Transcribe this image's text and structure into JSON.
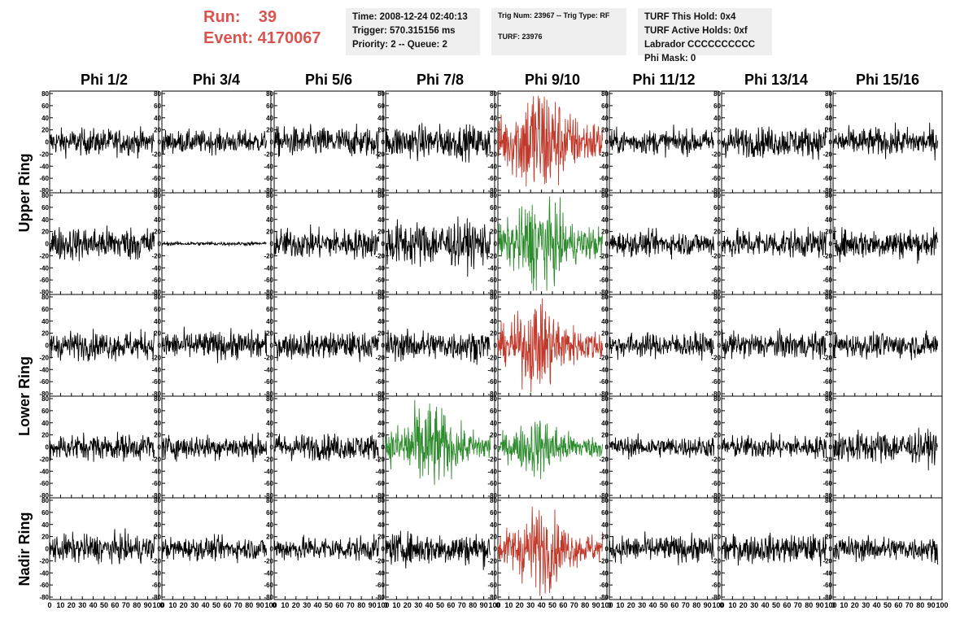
{
  "header": {
    "run_label": "Run:    39",
    "event_label": "Event: 4170067",
    "time_line": "Time: 2008-12-24 02:40:13",
    "trigger_line": "Trigger: 570.315156 ms",
    "priority_line": "Priority: 2 -- Queue: 2",
    "trig_num_line": "Trig Num: 23967 -- Trig Type: RF",
    "turf_line": "TURF: 23976",
    "turf_hold_line": "TURF This Hold: 0x4",
    "turf_active_line": "TURF Active Holds: 0xf",
    "labrador_line": "Labrador CCCCCCCCCC",
    "phi_mask_line": "Phi Mask: 0"
  },
  "chart_data": {
    "type": "line",
    "columns": [
      "Phi 1/2",
      "Phi 3/4",
      "Phi 5/6",
      "Phi 7/8",
      "Phi 9/10",
      "Phi 11/12",
      "Phi 13/14",
      "Phi 15/16"
    ],
    "ring_labels": [
      "Upper Ring",
      "Lower Ring",
      "Nadir Ring"
    ],
    "ylim": [
      -80,
      80
    ],
    "xlim": [
      0,
      100
    ],
    "y_ticks": [
      -80,
      -60,
      -40,
      -20,
      0,
      20,
      40,
      60,
      80
    ],
    "x_ticks": [
      0,
      10,
      20,
      30,
      40,
      50,
      60,
      70,
      80,
      90,
      100
    ],
    "colors": {
      "normal": "#000000",
      "triggered_red": "#c0392b",
      "triggered_green": "#2e8b2e"
    },
    "rows": [
      {
        "ring": "Upper Ring",
        "amplitudes": [
          14,
          12,
          16,
          18,
          42,
          13,
          16,
          15
        ],
        "colors": [
          "normal",
          "normal",
          "normal",
          "normal",
          "triggered_red",
          "normal",
          "normal",
          "normal"
        ]
      },
      {
        "ring": "Upper Ring",
        "amplitudes": [
          18,
          2,
          16,
          24,
          32,
          13,
          15,
          16
        ],
        "colors": [
          "normal",
          "normal",
          "normal",
          "normal",
          "triggered_green",
          "normal",
          "normal",
          "normal"
        ]
      },
      {
        "ring": "Lower Ring",
        "amplitudes": [
          15,
          15,
          14,
          16,
          30,
          13,
          14,
          13
        ],
        "colors": [
          "normal",
          "normal",
          "normal",
          "normal",
          "triggered_red",
          "normal",
          "normal",
          "normal"
        ]
      },
      {
        "ring": "Lower Ring",
        "amplitudes": [
          14,
          13,
          14,
          30,
          20,
          11,
          12,
          17
        ],
        "colors": [
          "normal",
          "normal",
          "normal",
          "triggered_green",
          "triggered_green",
          "normal",
          "normal",
          "normal"
        ]
      },
      {
        "ring": "Nadir Ring",
        "amplitudes": [
          15,
          12,
          13,
          17,
          28,
          14,
          15,
          13
        ],
        "colors": [
          "normal",
          "normal",
          "normal",
          "normal",
          "triggered_red",
          "normal",
          "normal",
          "normal"
        ]
      }
    ]
  }
}
